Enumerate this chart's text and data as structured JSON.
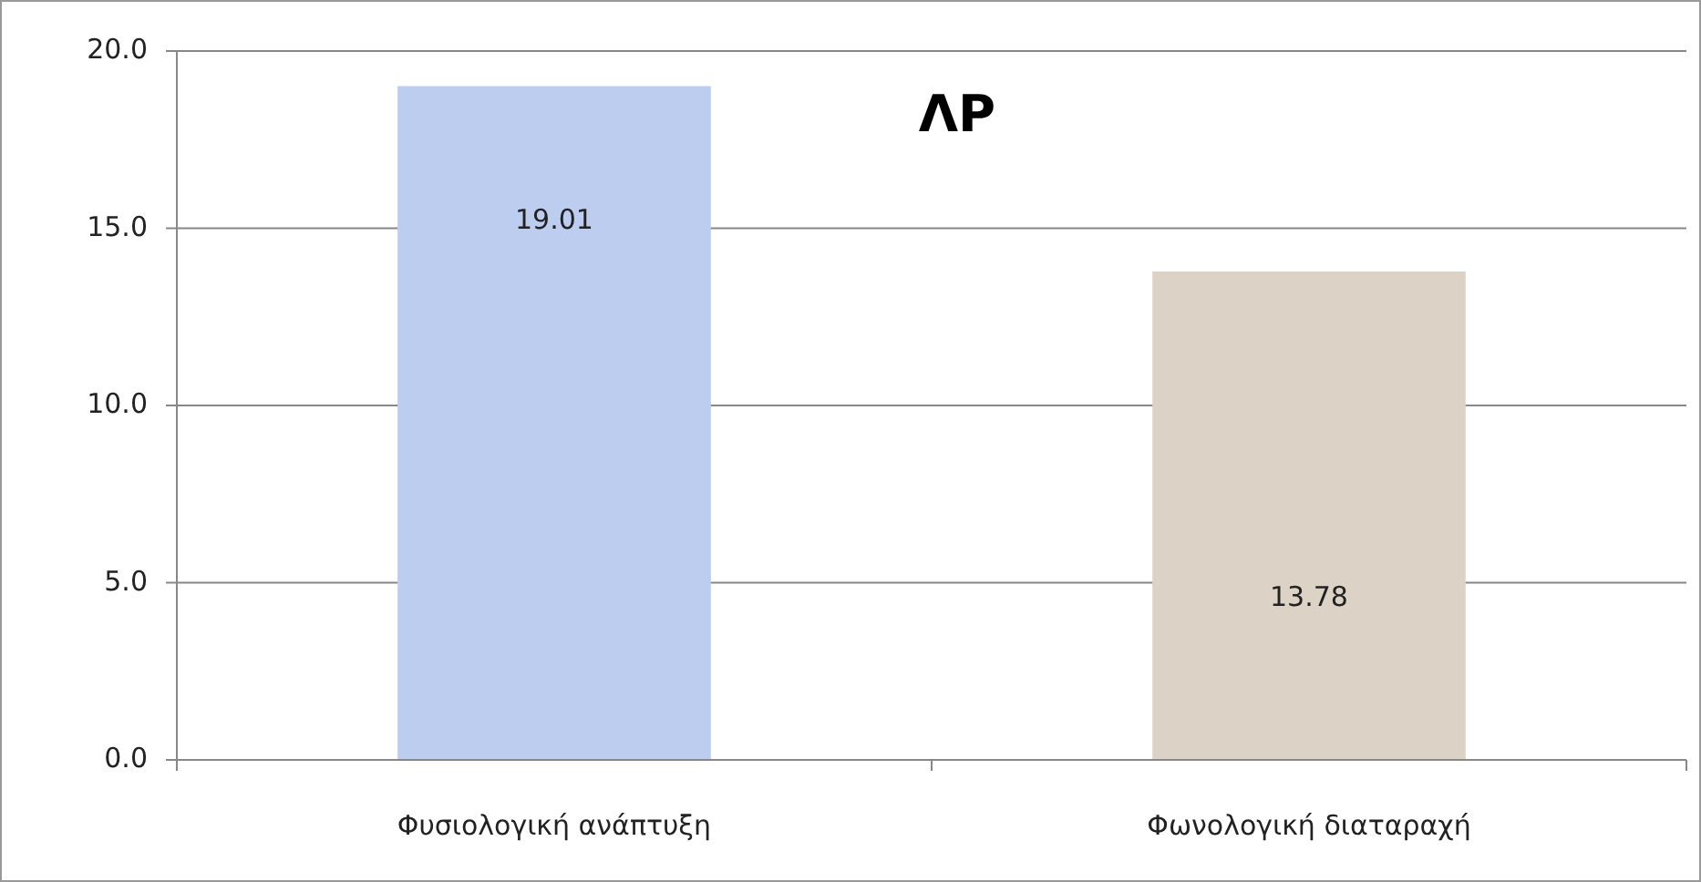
{
  "chart_data": {
    "type": "bar",
    "title": "ΛΡ",
    "categories": [
      "Φυσιολογική ανάπτυξη",
      "Φωνολογική διαταραχή"
    ],
    "values": [
      19.01,
      13.78
    ],
    "colors": [
      "#bccdf0",
      "#dcd3c6"
    ],
    "ylim": [
      0,
      20
    ],
    "yticks": [
      {
        "value": 0,
        "label": "0.0"
      },
      {
        "value": 5,
        "label": "5.0"
      },
      {
        "value": 10,
        "label": "10.0"
      },
      {
        "value": 15,
        "label": "15.0"
      },
      {
        "value": 20,
        "label": "20.0"
      }
    ],
    "grid": "y",
    "data_labels": true
  }
}
